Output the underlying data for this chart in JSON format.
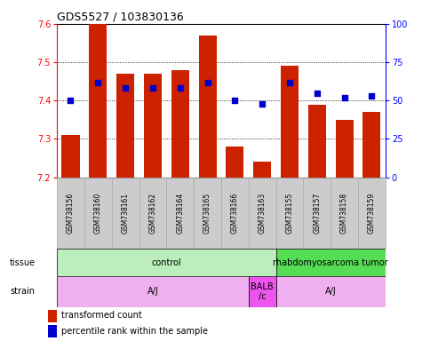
{
  "title": "GDS5527 / 103830136",
  "samples": [
    "GSM738156",
    "GSM738160",
    "GSM738161",
    "GSM738162",
    "GSM738164",
    "GSM738165",
    "GSM738166",
    "GSM738163",
    "GSM738155",
    "GSM738157",
    "GSM738158",
    "GSM738159"
  ],
  "bar_values": [
    7.31,
    7.6,
    7.47,
    7.47,
    7.48,
    7.57,
    7.28,
    7.24,
    7.49,
    7.39,
    7.35,
    7.37
  ],
  "percentile_values": [
    50,
    62,
    58,
    58,
    58,
    62,
    50,
    48,
    62,
    55,
    52,
    53
  ],
  "ymin": 7.2,
  "ymax": 7.6,
  "y2min": 0,
  "y2max": 100,
  "bar_color": "#cc2200",
  "dot_color": "#0000cc",
  "bar_bottom": 7.2,
  "left_yticks": [
    7.2,
    7.3,
    7.4,
    7.5,
    7.6
  ],
  "right_yticks": [
    0,
    25,
    50,
    75,
    100
  ],
  "grid_yticks": [
    7.3,
    7.4,
    7.5
  ],
  "tissue_groups": [
    {
      "label": "control",
      "start": 0,
      "end": 8,
      "color": "#bbeebb"
    },
    {
      "label": "rhabdomyosarcoma tumor",
      "start": 8,
      "end": 12,
      "color": "#55dd55"
    }
  ],
  "strain_groups": [
    {
      "label": "A/J",
      "start": 0,
      "end": 7,
      "color": "#f0b0f0"
    },
    {
      "label": "BALB\n/c",
      "start": 7,
      "end": 8,
      "color": "#ee55ee"
    },
    {
      "label": "A/J",
      "start": 8,
      "end": 12,
      "color": "#f0b0f0"
    }
  ],
  "tissue_label": "tissue",
  "strain_label": "strain",
  "legend_red": "transformed count",
  "legend_blue": "percentile rank within the sample"
}
